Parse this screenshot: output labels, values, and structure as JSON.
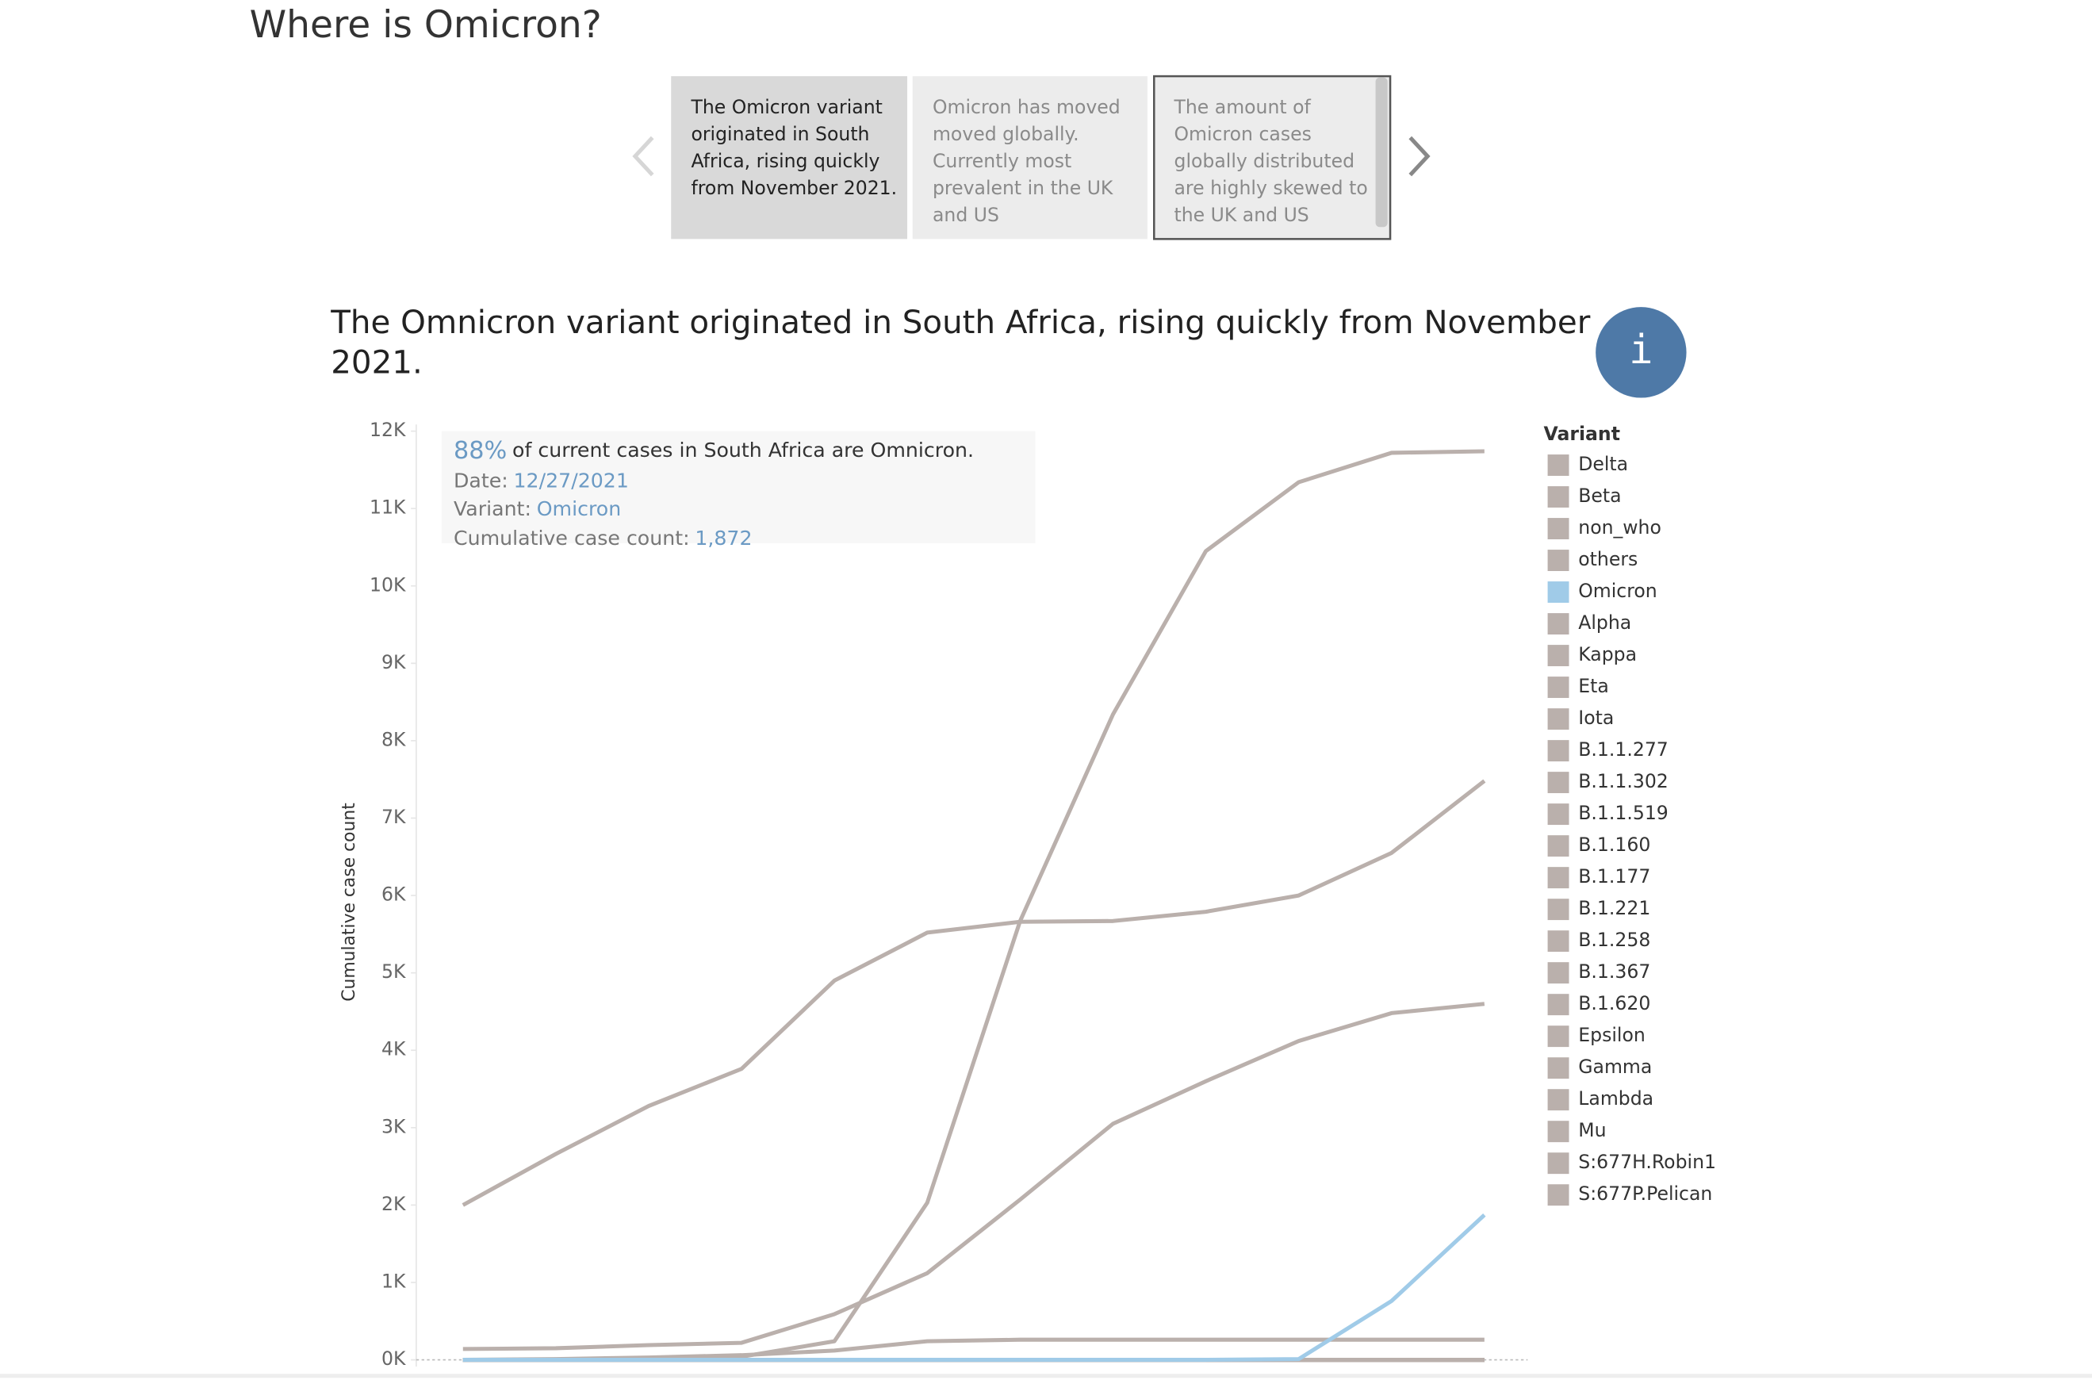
{
  "page_title": "Where is Omicron?",
  "story_points": [
    {
      "lines": [
        "The Omicron variant",
        "originated in South",
        "Africa, rising quickly",
        "from November 2021."
      ]
    },
    {
      "lines": [
        "Omicron has moved",
        "moved globally.",
        "Currently most",
        "prevalent in the UK",
        "and US"
      ]
    },
    {
      "lines": [
        "The amount of",
        "Omicron cases",
        "globally distributed",
        "are highly skewed to",
        "the UK and US"
      ]
    }
  ],
  "info_button": "i",
  "chart_data": {
    "type": "line",
    "title_lines": [
      "The Omnicron variant originated in South Africa, rising quickly from November",
      "2021."
    ],
    "y_label": "Cumulative case count",
    "legend_title": "Variant",
    "tooltip": {
      "headline": "88%",
      "headline_text": "of current cases in South Africa are Omnicron.",
      "date_label": "Date:",
      "date": "12/27/2021",
      "variant_label": "Variant:",
      "variant": "Omicron",
      "count_label": "Cumulative case count:",
      "count": "1,872"
    },
    "ylim": [
      0,
      12000
    ],
    "yticks": [
      {
        "value": 0,
        "label": "0K"
      },
      {
        "value": 1000,
        "label": "1K"
      },
      {
        "value": 2000,
        "label": "2K"
      },
      {
        "value": 3000,
        "label": "3K"
      },
      {
        "value": 4000,
        "label": "4K"
      },
      {
        "value": 5000,
        "label": "5K"
      },
      {
        "value": 6000,
        "label": "6K"
      },
      {
        "value": 7000,
        "label": "7K"
      },
      {
        "value": 8000,
        "label": "8K"
      },
      {
        "value": 9000,
        "label": "9K"
      },
      {
        "value": 10000,
        "label": "10K"
      },
      {
        "value": 11000,
        "label": "11K"
      },
      {
        "value": 12000,
        "label": "12K"
      }
    ],
    "grid": false,
    "categories": [
      null,
      null,
      null,
      null,
      null,
      null,
      null,
      null,
      null,
      null,
      null,
      null
    ],
    "series": [
      {
        "name": "Delta",
        "color": "#bab0ac",
        "values": [
          0,
          0,
          10,
          40,
          240,
          2030,
          5670,
          8340,
          10450,
          11340,
          11720,
          11740
        ]
      },
      {
        "name": "Beta",
        "color": "#bab0ac",
        "values": [
          2000,
          2660,
          3280,
          3760,
          4900,
          5520,
          5660,
          5670,
          5790,
          6000,
          6550,
          7480
        ]
      },
      {
        "name": "non_who",
        "color": "#bab0ac",
        "values": [
          140,
          150,
          190,
          220,
          590,
          1120,
          2070,
          3050,
          3600,
          4120,
          4480,
          4600
        ]
      },
      {
        "name": "others",
        "color": "#bab0ac",
        "values": [
          0,
          10,
          30,
          60,
          120,
          240,
          260,
          260,
          260,
          260,
          260,
          260
        ]
      },
      {
        "name": "Omicron",
        "color": "#a0cbe8",
        "values": [
          0,
          0,
          0,
          0,
          0,
          0,
          0,
          0,
          0,
          10,
          760,
          1872
        ]
      },
      {
        "name": "Alpha",
        "color": "#bab0ac",
        "values": [
          0,
          0,
          0,
          0,
          0,
          0,
          0,
          0,
          0,
          0,
          0,
          0
        ]
      },
      {
        "name": "Kappa",
        "color": "#bab0ac",
        "values": [
          0,
          0,
          0,
          0,
          0,
          0,
          0,
          0,
          0,
          0,
          0,
          0
        ]
      },
      {
        "name": "Eta",
        "color": "#bab0ac",
        "values": [
          0,
          0,
          0,
          0,
          0,
          0,
          0,
          0,
          0,
          0,
          0,
          0
        ]
      },
      {
        "name": "Iota",
        "color": "#bab0ac",
        "values": [
          0,
          0,
          0,
          0,
          0,
          0,
          0,
          0,
          0,
          0,
          0,
          0
        ]
      },
      {
        "name": "B.1.1.277",
        "color": "#bab0ac",
        "values": [
          0,
          0,
          0,
          0,
          0,
          0,
          0,
          0,
          0,
          0,
          0,
          0
        ]
      },
      {
        "name": "B.1.1.302",
        "color": "#bab0ac",
        "values": [
          0,
          0,
          0,
          0,
          0,
          0,
          0,
          0,
          0,
          0,
          0,
          0
        ]
      },
      {
        "name": "B.1.1.519",
        "color": "#bab0ac",
        "values": [
          0,
          0,
          0,
          0,
          0,
          0,
          0,
          0,
          0,
          0,
          0,
          0
        ]
      },
      {
        "name": "B.1.160",
        "color": "#bab0ac",
        "values": [
          0,
          0,
          0,
          0,
          0,
          0,
          0,
          0,
          0,
          0,
          0,
          0
        ]
      },
      {
        "name": "B.1.177",
        "color": "#bab0ac",
        "values": [
          0,
          0,
          0,
          0,
          0,
          0,
          0,
          0,
          0,
          0,
          0,
          0
        ]
      },
      {
        "name": "B.1.221",
        "color": "#bab0ac",
        "values": [
          0,
          0,
          0,
          0,
          0,
          0,
          0,
          0,
          0,
          0,
          0,
          0
        ]
      },
      {
        "name": "B.1.258",
        "color": "#bab0ac",
        "values": [
          0,
          0,
          0,
          0,
          0,
          0,
          0,
          0,
          0,
          0,
          0,
          0
        ]
      },
      {
        "name": "B.1.367",
        "color": "#bab0ac",
        "values": [
          0,
          0,
          0,
          0,
          0,
          0,
          0,
          0,
          0,
          0,
          0,
          0
        ]
      },
      {
        "name": "B.1.620",
        "color": "#bab0ac",
        "values": [
          0,
          0,
          0,
          0,
          0,
          0,
          0,
          0,
          0,
          0,
          0,
          0
        ]
      },
      {
        "name": "Epsilon",
        "color": "#bab0ac",
        "values": [
          0,
          0,
          0,
          0,
          0,
          0,
          0,
          0,
          0,
          0,
          0,
          0
        ]
      },
      {
        "name": "Gamma",
        "color": "#bab0ac",
        "values": [
          0,
          0,
          0,
          0,
          0,
          0,
          0,
          0,
          0,
          0,
          0,
          0
        ]
      },
      {
        "name": "Lambda",
        "color": "#bab0ac",
        "values": [
          0,
          0,
          0,
          0,
          0,
          0,
          0,
          0,
          0,
          0,
          0,
          0
        ]
      },
      {
        "name": "Mu",
        "color": "#bab0ac",
        "values": [
          0,
          0,
          0,
          0,
          0,
          0,
          0,
          0,
          0,
          0,
          0,
          0
        ]
      },
      {
        "name": "S:677H.Robin1",
        "color": "#bab0ac",
        "values": [
          0,
          0,
          0,
          0,
          0,
          0,
          0,
          0,
          0,
          0,
          0,
          0
        ]
      },
      {
        "name": "S:677P.Pelican",
        "color": "#bab0ac",
        "values": [
          0,
          0,
          0,
          0,
          0,
          0,
          0,
          0,
          0,
          0,
          0,
          0
        ]
      }
    ]
  }
}
